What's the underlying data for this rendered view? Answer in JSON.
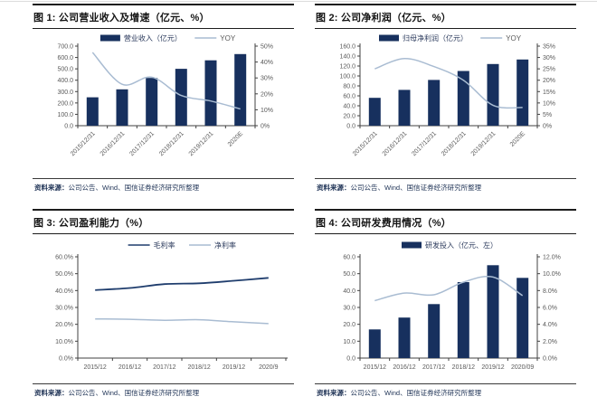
{
  "colors": {
    "bar": "#17305e",
    "line_light": "#a9bcd2",
    "line_dark": "#1f3d6d",
    "axis": "#404040",
    "tick_text": "#595959",
    "legend_text_cjk": "#2b3a5c",
    "legend_text_latin": "#595959",
    "title_text": "#141414",
    "source_text": "#1f3356"
  },
  "source": {
    "label": "资料来源：",
    "text": "公司公告、Wind、国信证券经济研究所整理"
  },
  "chart_data": [
    {
      "type": "combo-bar-line",
      "title": "图 1: 公司营业收入及增速（亿元、%）",
      "categories": [
        "2015/12/31",
        "2016/12/31",
        "2017/12/31",
        "2018/12/31",
        "2019/12/31",
        "2020E"
      ],
      "x_rotated": true,
      "bar": {
        "name": "营业收入（亿元）",
        "values": [
          250,
          320,
          420,
          500,
          575,
          630
        ]
      },
      "lines": [
        {
          "name": "YOY",
          "color": "light",
          "values": [
            46,
            26,
            30.5,
            19,
            15.5,
            10.5
          ]
        }
      ],
      "left_axis": {
        "min": 0,
        "max": 700,
        "labels": [
          "700.0",
          "600.0",
          "500.0",
          "400.0",
          "300.0",
          "200.0",
          "100.0",
          "0.0"
        ]
      },
      "right_axis": {
        "min": 0,
        "max": 50,
        "labels": [
          "50%",
          "40%",
          "30%",
          "20%",
          "10%",
          "0%"
        ]
      }
    },
    {
      "type": "combo-bar-line",
      "title": "图 2: 公司净利润（亿元、%）",
      "categories": [
        "2015/12/31",
        "2016/12/31",
        "2017/12/31",
        "2018/12/31",
        "2019/12/31",
        "2020E"
      ],
      "x_rotated": true,
      "bar": {
        "name": "归母净利润（亿元）",
        "values": [
          56,
          72,
          92,
          110,
          124,
          133
        ]
      },
      "lines": [
        {
          "name": "YOY",
          "color": "light",
          "values": [
            25,
            29.5,
            26,
            20,
            9,
            8
          ]
        }
      ],
      "left_axis": {
        "min": 0,
        "max": 160,
        "labels": [
          "160.0",
          "140.0",
          "120.0",
          "100.0",
          "80.0",
          "60.0",
          "40.0",
          "20.0",
          "0.0"
        ]
      },
      "right_axis": {
        "min": 0,
        "max": 35,
        "labels": [
          "35%",
          "30%",
          "25%",
          "20%",
          "15%",
          "10%",
          "5%",
          "0%"
        ]
      }
    },
    {
      "type": "line",
      "title": "图 3: 公司盈利能力（%）",
      "categories": [
        "2015/12",
        "2016/12",
        "2017/12",
        "2018/12",
        "2019/12",
        "2020/9"
      ],
      "x_rotated": false,
      "lines": [
        {
          "name": "毛利率",
          "color": "dark",
          "values": [
            40.3,
            41.5,
            43.8,
            44.3,
            45.8,
            47.5
          ]
        },
        {
          "name": "净利率",
          "color": "light",
          "values": [
            23.2,
            23.0,
            22.4,
            22.7,
            21.5,
            20.4
          ]
        }
      ],
      "left_axis": {
        "min": 0,
        "max": 60,
        "labels": [
          "60.0%",
          "50.0%",
          "40.0%",
          "30.0%",
          "20.0%",
          "10.0%",
          "0.0%"
        ]
      }
    },
    {
      "type": "combo-bar-line",
      "title": "图 4: 公司研发费用情况（%）",
      "categories": [
        "2015/12",
        "2016/12",
        "2017/12",
        "2018/12",
        "2019/12",
        "2020/09"
      ],
      "x_rotated": false,
      "bar": {
        "name": "研发投入（亿元、左）",
        "values": [
          17,
          24,
          32,
          45,
          55,
          47.5
        ]
      },
      "lines": [
        {
          "name": "",
          "color": "light",
          "values": [
            6.8,
            7.7,
            7.5,
            9.0,
            9.6,
            7.4
          ]
        }
      ],
      "left_axis": {
        "min": 0,
        "max": 60,
        "labels": [
          "60.0",
          "50.0",
          "40.0",
          "30.0",
          "20.0",
          "10.0",
          "0.0"
        ]
      },
      "right_axis": {
        "min": 0,
        "max": 12,
        "labels": [
          "12.0%",
          "10.0%",
          "8.0%",
          "6.0%",
          "4.0%",
          "2.0%",
          "0.0%"
        ]
      }
    }
  ]
}
